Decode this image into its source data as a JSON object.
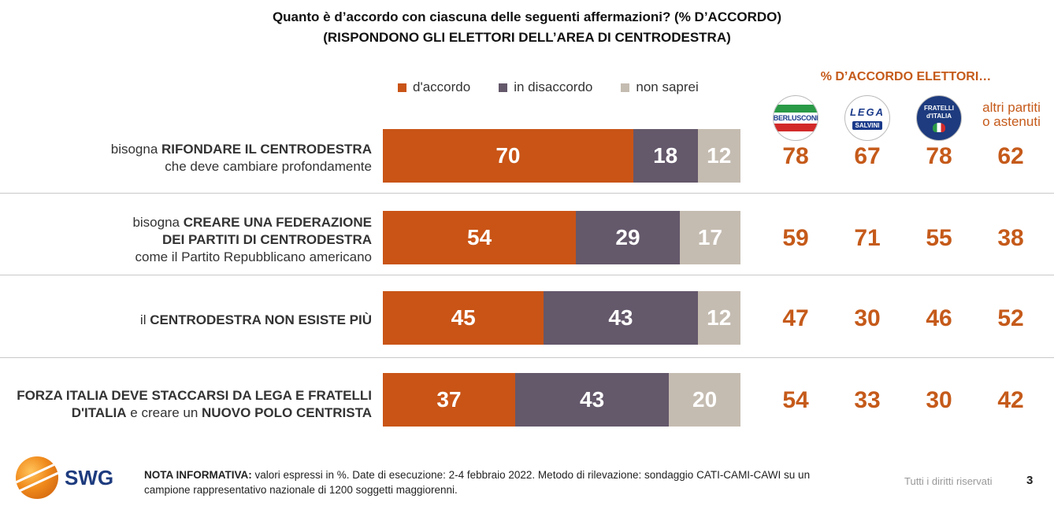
{
  "title_line1": "Quanto è d’accordo con ciascuna delle seguenti affermazioni? (% D’ACCORDO)",
  "title_line2": "(RISPONDONO GLI ELETTORI DELL’AREA DI CENTRODESTRA)",
  "legend": [
    {
      "label": "d'accordo",
      "color": "#c95416"
    },
    {
      "label": "in disaccordo",
      "color": "#64586b"
    },
    {
      "label": "non saprei",
      "color": "#c5bcb1"
    }
  ],
  "parties_header": "% D’ACCORDO ELETTORI…",
  "party_logos": {
    "fi": {
      "name": "BERLUSCONI",
      "icon": "forza-italia-logo"
    },
    "lega": {
      "top": "LEGA",
      "bottom": "SALVINI",
      "icon": "lega-logo"
    },
    "fdi": {
      "line1": "FRATELLI",
      "line2": "d'ITALIA",
      "icon": "fratelli-italia-logo"
    }
  },
  "altri_label_1": "altri partiti",
  "altri_label_2": "o astenuti",
  "rows_text": [
    {
      "pre": "bisogna ",
      "bold1": "RIFONDARE IL CENTRODESTRA",
      "line2": "che deve cambiare profondamente"
    },
    {
      "pre": "bisogna ",
      "bold1": "CREARE UNA FEDERAZIONE",
      "bold2": "DEI PARTITI DI CENTRODESTRA",
      "line3": "come il Partito Repubblicano americano"
    },
    {
      "pre": "il ",
      "bold1": "CENTRODESTRA NON ESISTE PIÙ"
    },
    {
      "bold1": "FORZA ITALIA DEVE STACCARSI DA LEGA E FRATELLI",
      "bold2a": "D'ITALIA",
      "mid": " e creare un ",
      "bold2b": "NUOVO POLO CENTRISTA"
    }
  ],
  "chart_data": {
    "type": "bar",
    "stacked": true,
    "orientation": "horizontal",
    "categories": [
      "bisogna RIFONDARE IL CENTRODESTRA che deve cambiare profondamente",
      "bisogna CREARE UNA FEDERAZIONE DEI PARTITI DI CENTRODESTRA come il Partito Repubblicano americano",
      "il CENTRODESTRA NON ESISTE PIÙ",
      "FORZA ITALIA DEVE STACCARSI DA LEGA E FRATELLI D'ITALIA e creare un NUOVO POLO CENTRISTA"
    ],
    "series": [
      {
        "name": "d'accordo",
        "color": "#c95416",
        "values": [
          70,
          54,
          45,
          37
        ]
      },
      {
        "name": "in disaccordo",
        "color": "#64586b",
        "values": [
          18,
          29,
          43,
          43
        ]
      },
      {
        "name": "non saprei",
        "color": "#c5bcb1",
        "values": [
          12,
          17,
          12,
          20
        ]
      }
    ],
    "party_agreement": {
      "series": [
        {
          "name": "Forza Italia",
          "values": [
            78,
            59,
            47,
            54
          ]
        },
        {
          "name": "Lega",
          "values": [
            67,
            71,
            30,
            33
          ]
        },
        {
          "name": "Fratelli d'Italia",
          "values": [
            78,
            55,
            46,
            30
          ]
        },
        {
          "name": "altri partiti o astenuti",
          "values": [
            62,
            38,
            52,
            42
          ]
        }
      ]
    },
    "unit": "%",
    "legend_position": "top"
  },
  "footer": {
    "brand": "SWG",
    "note_bold": "NOTA INFORMATIVA:",
    "note_text": " valori espressi in %. Date di esecuzione: 2-4 febbraio 2022. Metodo di rilevazione: sondaggio CATI-CAMI-CAWI su un campione rappresentativo nazionale di 1200 soggetti maggiorenni.",
    "rights": "Tutti i diritti riservati",
    "page": "3"
  }
}
